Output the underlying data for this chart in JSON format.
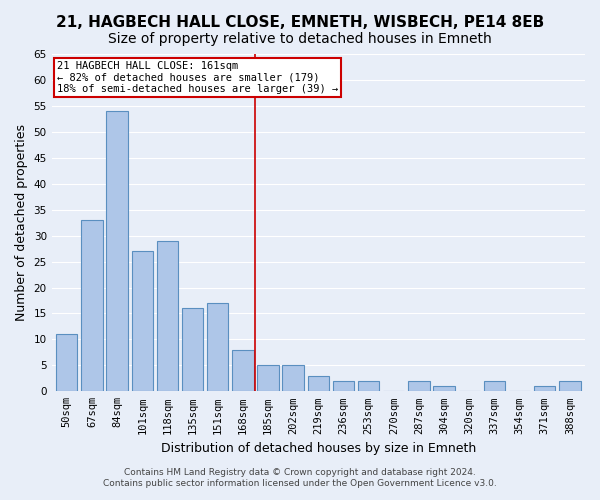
{
  "title1": "21, HAGBECH HALL CLOSE, EMNETH, WISBECH, PE14 8EB",
  "title2": "Size of property relative to detached houses in Emneth",
  "xlabel": "Distribution of detached houses by size in Emneth",
  "ylabel": "Number of detached properties",
  "categories": [
    "50sqm",
    "67sqm",
    "84sqm",
    "101sqm",
    "118sqm",
    "135sqm",
    "151sqm",
    "168sqm",
    "185sqm",
    "202sqm",
    "219sqm",
    "236sqm",
    "253sqm",
    "270sqm",
    "287sqm",
    "304sqm",
    "320sqm",
    "337sqm",
    "354sqm",
    "371sqm",
    "388sqm"
  ],
  "values": [
    11,
    33,
    54,
    27,
    29,
    16,
    17,
    8,
    5,
    5,
    3,
    2,
    2,
    0,
    2,
    1,
    0,
    2,
    0,
    1,
    2
  ],
  "bar_color": "#aec6e8",
  "bar_edge_color": "#5a8fc0",
  "ylim": [
    0,
    65
  ],
  "yticks": [
    0,
    5,
    10,
    15,
    20,
    25,
    30,
    35,
    40,
    45,
    50,
    55,
    60,
    65
  ],
  "vline_x": 7.5,
  "vline_color": "#cc0000",
  "annotation_title": "21 HAGBECH HALL CLOSE: 161sqm",
  "annotation_line1": "← 82% of detached houses are smaller (179)",
  "annotation_line2": "18% of semi-detached houses are larger (39) →",
  "annotation_box_color": "#ffffff",
  "annotation_box_edge": "#cc0000",
  "bg_color": "#e8eef8",
  "plot_bg_color": "#e8eef8",
  "footer1": "Contains HM Land Registry data © Crown copyright and database right 2024.",
  "footer2": "Contains public sector information licensed under the Open Government Licence v3.0.",
  "grid_color": "#ffffff",
  "title_fontsize": 11,
  "subtitle_fontsize": 10,
  "tick_fontsize": 7.5,
  "ylabel_fontsize": 9,
  "xlabel_fontsize": 9
}
